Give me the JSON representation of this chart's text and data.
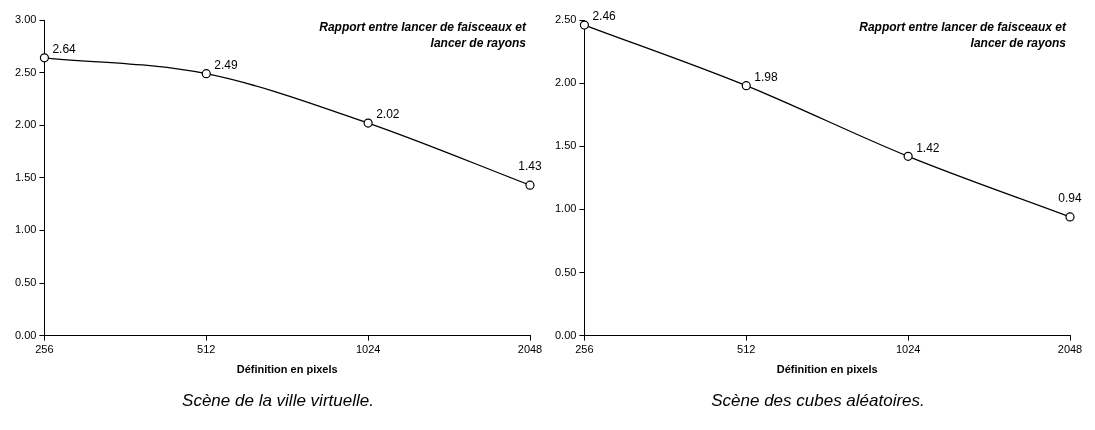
{
  "chart_data": [
    {
      "type": "line",
      "title": "Scène de la ville virtuelle.",
      "xlabel": "Définition en pixels",
      "annotations": [
        "Rapport entre lancer de faisceaux et lancer de rayons"
      ],
      "categories": [
        "256",
        "512",
        "1024",
        "2048"
      ],
      "series": [
        {
          "color": "#000000",
          "values": [
            2.64,
            2.49,
            2.02,
            1.43
          ]
        }
      ],
      "ylim": [
        0,
        3
      ],
      "yticks": [
        {
          "value": 0,
          "label": "0.00"
        },
        {
          "value": 0.5,
          "label": "0.50"
        },
        {
          "value": 1,
          "label": "1.00"
        },
        {
          "value": 1.5,
          "label": "1.50"
        },
        {
          "value": 2,
          "label": "2.00"
        },
        {
          "value": 2.5,
          "label": "2.50"
        },
        {
          "value": 3,
          "label": "3.00"
        }
      ],
      "marker": "circle",
      "line_style": "solid",
      "data_labels": true
    },
    {
      "type": "line",
      "title": "Scène des cubes aléatoires.",
      "xlabel": "Définition en pixels",
      "annotations": [
        "Rapport entre lancer de faisceaux et lancer de rayons"
      ],
      "categories": [
        "256",
        "512",
        "1024",
        "2048"
      ],
      "series": [
        {
          "color": "#000000",
          "values": [
            2.46,
            1.98,
            1.42,
            0.94
          ]
        }
      ],
      "ylim": [
        0,
        2.5
      ],
      "yticks": [
        {
          "value": 0,
          "label": "0.00"
        },
        {
          "value": 0.5,
          "label": "0.50"
        },
        {
          "value": 1,
          "label": "1.00"
        },
        {
          "value": 1.5,
          "label": "1.50"
        },
        {
          "value": 2,
          "label": "2.00"
        },
        {
          "value": 2.5,
          "label": "2.50"
        }
      ],
      "marker": "circle",
      "line_style": "solid",
      "data_labels": true
    }
  ]
}
